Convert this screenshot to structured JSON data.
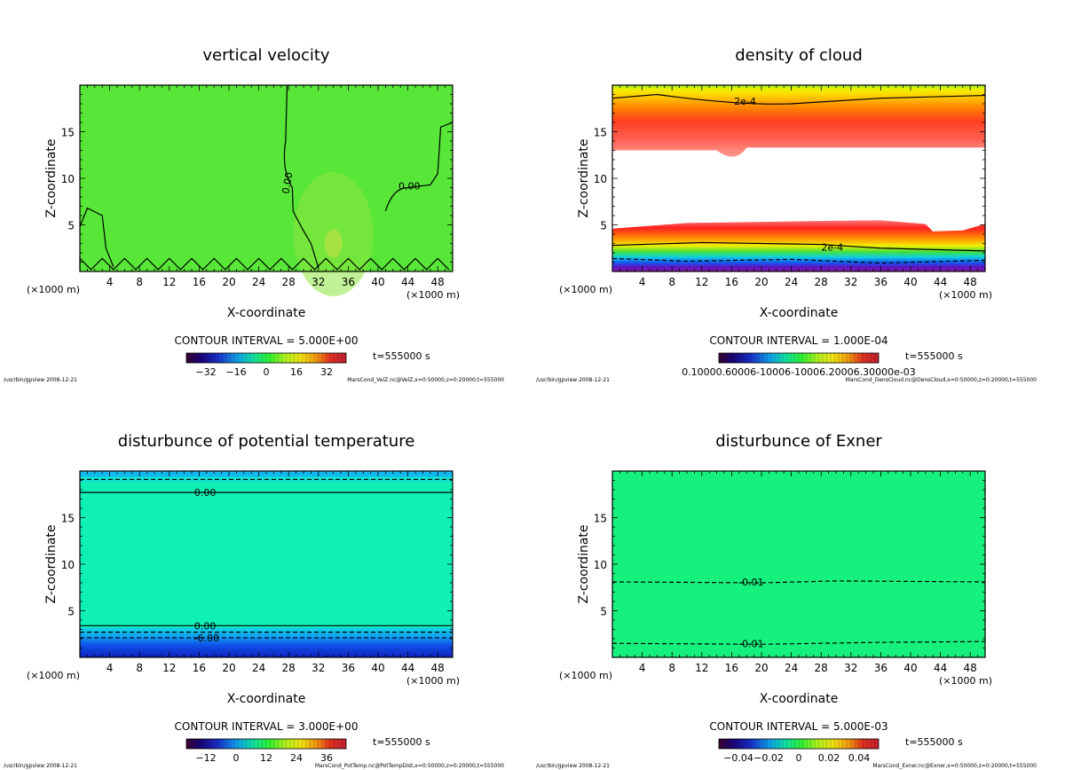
{
  "chart_data": [
    {
      "type": "heatmap",
      "title": "vertical velocity",
      "xlabel": "X-coordinate",
      "ylabel": "Z-coordinate",
      "unit_x": "(×1000 m)",
      "xlim": [
        0,
        50
      ],
      "ylim": [
        0,
        20
      ],
      "xticks": [
        4,
        8,
        12,
        16,
        20,
        24,
        28,
        32,
        36,
        40,
        44,
        48
      ],
      "yticks": [
        5,
        10,
        15
      ],
      "contour_interval": "CONTOUR INTERVAL = 5.000E+00",
      "time_label": "t=555000 s",
      "colorbar_ticks": [
        "−32",
        "−16",
        "0",
        "16",
        "32"
      ],
      "contour_labels": [
        {
          "text": "0.00",
          "x": 27.8,
          "z": 9.5,
          "rot": -80
        },
        {
          "text": "0.00",
          "x": 44.2,
          "z": 9.2,
          "rot": 0
        }
      ],
      "footer_left": "/usr/bin/gpview  2008-12-21",
      "footer_right": "MarsCond_VelZ.nc@VelZ,x=0:50000,z=0:20000,t=555000"
    },
    {
      "type": "heatmap",
      "title": "density of cloud",
      "xlabel": "X-coordinate",
      "ylabel": "Z-coordinate",
      "unit_x": "(×1000 m)",
      "xlim": [
        0,
        50
      ],
      "ylim": [
        0,
        20
      ],
      "xticks": [
        4,
        8,
        12,
        16,
        20,
        24,
        28,
        32,
        36,
        40,
        44,
        48
      ],
      "yticks": [
        5,
        10,
        15
      ],
      "contour_interval": "CONTOUR INTERVAL = 1.000E-04",
      "time_label": "t=555000 s",
      "colorbar_ticks": [
        "0.10000.60006-10006-10006.20006.30000e-03"
      ],
      "contour_labels": [
        {
          "text": "2e-4",
          "x": 17.8,
          "z": 18.3,
          "rot": 0
        },
        {
          "text": "2e-4",
          "x": 29.5,
          "z": 2.6,
          "rot": 0
        }
      ],
      "footer_left": "/usr/bin/gpview  2008-12-21",
      "footer_right": "MarsCond_DensCloud.nc@DensCloud,x=0:50000,z=0:20000,t=555000"
    },
    {
      "type": "heatmap",
      "title": "disturbunce of potential temperature",
      "xlabel": "X-coordinate",
      "ylabel": "Z-coordinate",
      "unit_x": "(×1000 m)",
      "xlim": [
        0,
        50
      ],
      "ylim": [
        0,
        20
      ],
      "xticks": [
        4,
        8,
        12,
        16,
        20,
        24,
        28,
        32,
        36,
        40,
        44,
        48
      ],
      "yticks": [
        5,
        10,
        15
      ],
      "contour_interval": "CONTOUR INTERVAL = 3.000E+00",
      "time_label": "t=555000 s",
      "colorbar_ticks": [
        "−12",
        "0",
        "12",
        "24",
        "36"
      ],
      "contour_labels": [
        {
          "text": "0.00",
          "x": 16.8,
          "z": 17.7,
          "rot": 0
        },
        {
          "text": "0.00",
          "x": 16.8,
          "z": 3.4,
          "rot": 0
        },
        {
          "text": "-6.00",
          "x": 17.0,
          "z": 2.1,
          "rot": 0
        }
      ],
      "footer_left": "/usr/bin/gpview  2008-12-21",
      "footer_right": "MarsCond_PotTemp.nc@PotTempDist,x=0:50000,z=0:20000,t=555000"
    },
    {
      "type": "heatmap",
      "title": "disturbunce of Exner",
      "xlabel": "X-coordinate",
      "ylabel": "Z-coordinate",
      "unit_x": "(×1000 m)",
      "xlim": [
        0,
        50
      ],
      "ylim": [
        0,
        20
      ],
      "xticks": [
        4,
        8,
        12,
        16,
        20,
        24,
        28,
        32,
        36,
        40,
        44,
        48
      ],
      "yticks": [
        5,
        10,
        15
      ],
      "contour_interval": "CONTOUR INTERVAL = 5.000E-03",
      "time_label": "t=555000 s",
      "colorbar_ticks": [
        "−0.04",
        "−0.02",
        "0",
        "0.02",
        "0.04"
      ],
      "contour_labels": [
        {
          "text": "-0.01",
          "x": 18.6,
          "z": 8.1,
          "rot": 0
        },
        {
          "text": "-0.01",
          "x": 18.6,
          "z": 1.5,
          "rot": 0
        }
      ],
      "footer_left": "/usr/bin/gpview  2008-12-21",
      "footer_right": "MarsCond_Exner.nc@Exner,x=0:50000,z=0:20000,t=555000"
    }
  ]
}
